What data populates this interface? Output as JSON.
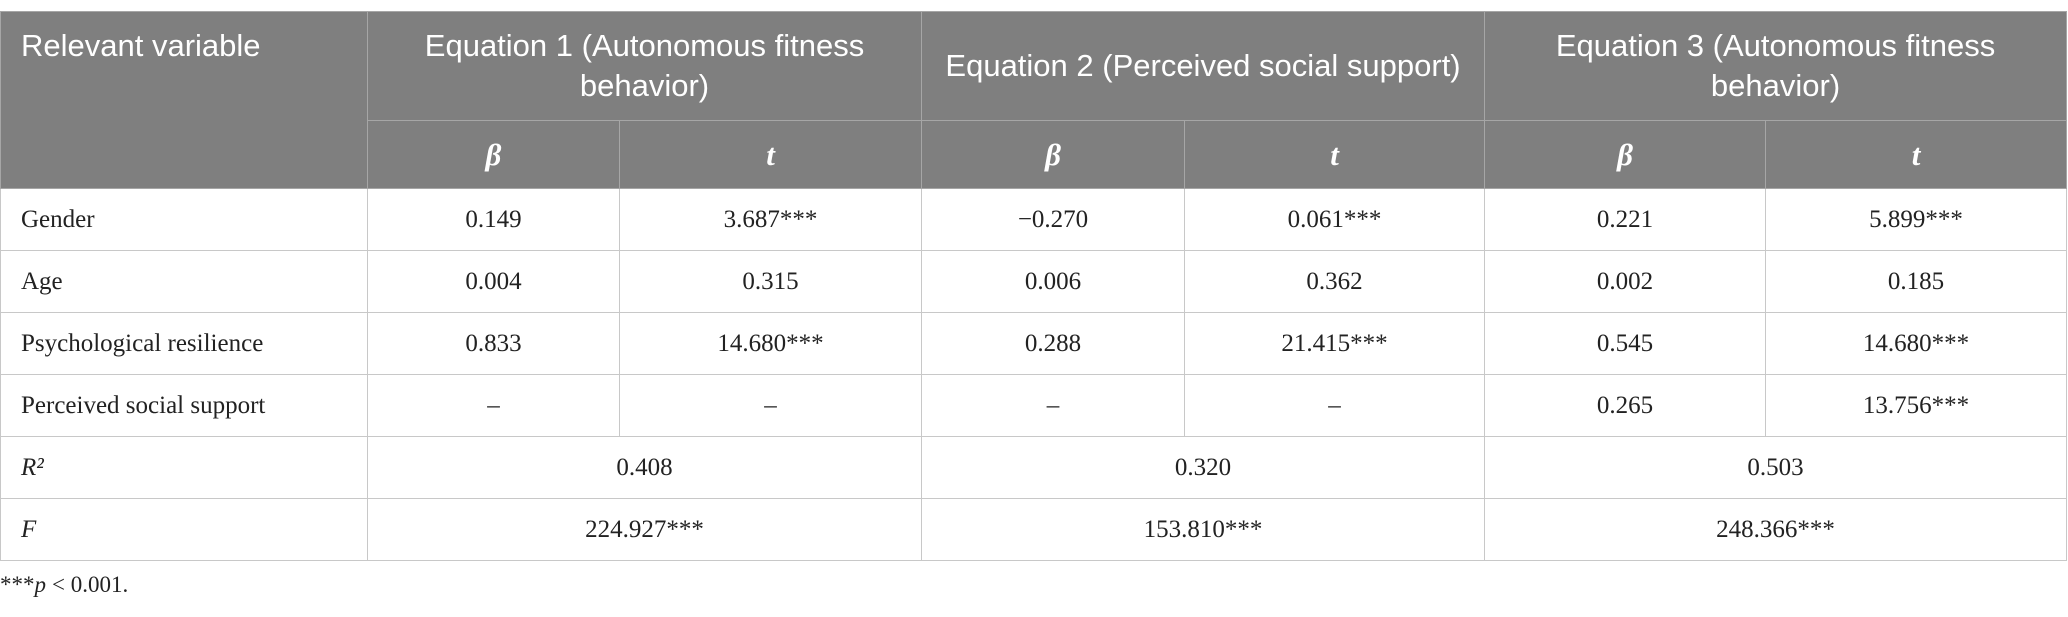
{
  "table": {
    "header": {
      "row_label": "Relevant variable",
      "equations": [
        "Equation 1 (Autonomous fitness behavior)",
        "Equation 2 (Perceived social support)",
        "Equation 3 (Autonomous fitness behavior)"
      ],
      "subheaders": [
        "β",
        "t",
        "β",
        "t",
        "β",
        "t"
      ]
    },
    "rows": [
      [
        "Gender",
        "0.149",
        "3.687***",
        "−0.270",
        "0.061***",
        "0.221",
        "5.899***"
      ],
      [
        "Age",
        "0.004",
        "0.315",
        "0.006",
        "0.362",
        "0.002",
        "0.185"
      ],
      [
        "Psychological resilience",
        "0.833",
        "14.680***",
        "0.288",
        "21.415***",
        "0.545",
        "14.680***"
      ],
      [
        "Perceived social support",
        "–",
        "–",
        "–",
        "–",
        "0.265",
        "13.756***"
      ]
    ],
    "summary_rows": [
      {
        "label": "R²",
        "values": [
          "0.408",
          "0.320",
          "0.503"
        ]
      },
      {
        "label": "F",
        "values": [
          "224.927***",
          "153.810***",
          "248.366***"
        ]
      }
    ]
  },
  "footnote": {
    "stars": "***",
    "variable": "p",
    "condition": "< 0.001."
  }
}
